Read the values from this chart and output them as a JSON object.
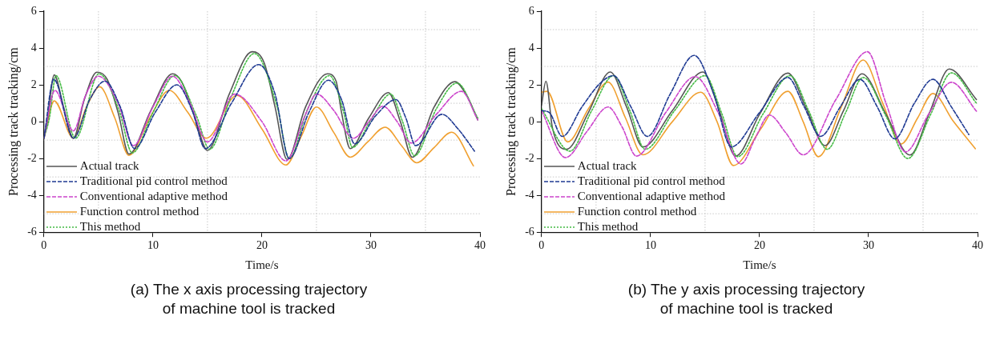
{
  "chart_data": [
    {
      "type": "line",
      "title": "(a) The x axis processing trajectory\nof machine tool is tracked",
      "xlabel": "Time/s",
      "ylabel": "Processing track tracking/cm",
      "xlim": [
        0,
        40
      ],
      "xticks": [
        0,
        10,
        20,
        30,
        40
      ],
      "ylim": [
        -6,
        6
      ],
      "yticks": [
        -6,
        -4,
        -2,
        0,
        2,
        4,
        6
      ],
      "grid": true,
      "legend": "bottom left",
      "marker": "none",
      "series": [
        {
          "name": "Actual track",
          "color": "#555555",
          "line_style": "solid",
          "x": [
            0,
            0.3,
            0.94,
            1.8,
            2.7,
            3.7,
            4.85,
            5.8,
            6.8,
            7.8,
            9.8,
            11.8,
            12.6,
            13.8,
            15,
            17,
            19.1,
            20.2,
            21.2,
            22.3,
            24,
            26,
            26.8,
            27.3,
            28.1,
            29.8,
            31.6,
            32.7,
            33.8,
            35.8,
            37.7,
            38.8,
            39.8
          ],
          "values": [
            -0.9,
            0,
            2.54,
            0.8,
            -0.9,
            1.2,
            2.69,
            2.3,
            0.5,
            -1.76,
            0.6,
            2.6,
            2.2,
            0.3,
            -1.56,
            1.5,
            3.8,
            3.2,
            0.8,
            -2.05,
            0.8,
            2.6,
            2.2,
            0.5,
            -1.46,
            0.2,
            1.58,
            0,
            -1.93,
            0.8,
            2.17,
            1.4,
            0.1
          ]
        },
        {
          "name": "Traditional pid control method",
          "color": "#1f3a93",
          "line_style": "dashed",
          "x": [
            0,
            0.9,
            2.7,
            4.2,
            5.6,
            7,
            8.3,
            10.2,
            12.2,
            13.6,
            14.8,
            17.2,
            19.7,
            21.2,
            22.5,
            24.3,
            26.1,
            27.3,
            28.5,
            30.4,
            32.3,
            33.2,
            34.1,
            36.5,
            38,
            39.5
          ],
          "values": [
            -0.9,
            2.3,
            -0.9,
            1.2,
            2.2,
            0.8,
            -1.46,
            0.5,
            2,
            0.6,
            -1.46,
            1,
            3.1,
            1.5,
            -2,
            0.5,
            2.25,
            1.2,
            -1.2,
            0.3,
            1.2,
            0.2,
            -1.3,
            0.4,
            -0.4,
            -1.6
          ]
        },
        {
          "name": "Conventional adaptive method",
          "color": "#cc44cc",
          "line_style": "dashed",
          "x": [
            0,
            1,
            2.7,
            3.8,
            5,
            6.8,
            8.2,
            10,
            11.8,
            13.4,
            15,
            17.5,
            20,
            22.2,
            24,
            25,
            26.6,
            28.4,
            29.8,
            31.1,
            32.4,
            33.7,
            36,
            38.3,
            39.8
          ],
          "values": [
            -0.9,
            1.7,
            -0.5,
            1.4,
            2.47,
            1,
            -1.3,
            0.8,
            2.47,
            1,
            -1.1,
            1.5,
            0,
            -2.13,
            0.4,
            1.5,
            0.6,
            -0.9,
            0,
            0.84,
            0,
            -1.16,
            0.4,
            1.65,
            0.1
          ]
        },
        {
          "name": "Function control method",
          "color": "#f0a030",
          "line_style": "solid",
          "x": [
            0,
            0.94,
            2.7,
            3.9,
            5.1,
            6.5,
            7.8,
            9.7,
            11.5,
            13.2,
            14.9,
            17.7,
            20,
            22.2,
            23.6,
            25,
            26.6,
            28.1,
            29.7,
            31.3,
            32.8,
            34.2,
            35.8,
            37.4,
            39.4
          ],
          "values": [
            -0.9,
            1.13,
            -0.9,
            0.8,
            1.9,
            0.2,
            -1.83,
            0.2,
            1.7,
            0.5,
            -0.9,
            1.43,
            -0.4,
            -2.35,
            -0.8,
            0.8,
            -0.6,
            -1.93,
            -1.1,
            -0.3,
            -1.3,
            -2.23,
            -1.4,
            -0.57,
            -2.4
          ]
        },
        {
          "name": "This method",
          "color": "#44bb44",
          "line_style": "dotted",
          "x": [
            0,
            0.5,
            1.1,
            2.9,
            5.05,
            6.9,
            8.1,
            10,
            12,
            14,
            15.2,
            17.2,
            19.3,
            21.4,
            22.5,
            24.2,
            26.2,
            27.5,
            28.3,
            30,
            31.8,
            32.9,
            34,
            36,
            37.9,
            39.8
          ],
          "values": [
            -0.9,
            0.2,
            2.5,
            -0.9,
            2.6,
            0.6,
            -1.7,
            0.5,
            2.5,
            0.3,
            -1.5,
            1.4,
            3.7,
            0.8,
            -2,
            0.7,
            2.5,
            0.5,
            -1.4,
            0.1,
            1.5,
            0,
            -1.85,
            0.7,
            2.1,
            0.2
          ]
        }
      ]
    },
    {
      "type": "line",
      "title": "(b) The y axis processing trajectory\nof machine tool is tracked",
      "xlabel": "Time/s",
      "ylabel": "Processing track tracking/cm",
      "xlim": [
        0,
        40
      ],
      "xticks": [
        0,
        10,
        20,
        30,
        40
      ],
      "ylim": [
        -6,
        6
      ],
      "yticks": [
        -6,
        -4,
        -2,
        0,
        2,
        4,
        6
      ],
      "grid": true,
      "legend": "bottom left",
      "marker": "none",
      "series": [
        {
          "name": "Actual track",
          "color": "#555555",
          "line_style": "solid",
          "x": [
            0,
            0.4,
            1,
            2.3,
            4.3,
            6.3,
            7.8,
            9.3,
            12,
            14.8,
            16.3,
            17.8,
            20,
            22.6,
            24.3,
            26,
            27.7,
            29.4,
            31.6,
            33.8,
            35.6,
            37.4,
            39.9
          ],
          "values": [
            0.9,
            2.2,
            -0.35,
            -1.5,
            0.5,
            2.7,
            0.8,
            -1.37,
            0.6,
            2.7,
            0.6,
            -1.87,
            0.4,
            2.64,
            0.7,
            -1.3,
            0.6,
            2.6,
            0.4,
            -1.81,
            0.5,
            2.86,
            1.2
          ]
        },
        {
          "name": "Traditional pid control method",
          "color": "#1f3a93",
          "line_style": "dashed",
          "x": [
            0,
            0.7,
            1.9,
            3.7,
            5.4,
            6.6,
            8.2,
            9.7,
            11.8,
            14,
            15.8,
            17.4,
            20,
            22.6,
            24.1,
            25.6,
            27.4,
            29.2,
            30.8,
            32.4,
            34.2,
            35.9,
            37.6,
            39.2
          ],
          "values": [
            0.6,
            0.5,
            -0.8,
            0.8,
            2.1,
            2.5,
            0.8,
            -0.8,
            1.5,
            3.6,
            1.5,
            -1.37,
            0.5,
            2.4,
            0.8,
            -0.8,
            0.8,
            2.3,
            0.8,
            -0.93,
            1,
            2.3,
            0.8,
            -0.7
          ]
        },
        {
          "name": "Conventional adaptive method",
          "color": "#cc44cc",
          "line_style": "dashed",
          "x": [
            0,
            2.2,
            4.2,
            6.1,
            7.4,
            8.7,
            11.4,
            14.1,
            16.2,
            18.3,
            19.6,
            20.9,
            22.4,
            24,
            27,
            29.9,
            31.6,
            33.4,
            35.5,
            37.6,
            39.9
          ],
          "values": [
            0.6,
            -1.95,
            -0.5,
            0.8,
            -0.3,
            -1.87,
            0.5,
            2.45,
            0.5,
            -2.3,
            -0.9,
            0.36,
            -0.6,
            -1.8,
            1.2,
            3.8,
            1,
            -1.64,
            0.4,
            2.14,
            0.57
          ]
        },
        {
          "name": "Function control method",
          "color": "#f0a030",
          "line_style": "solid",
          "x": [
            0,
            0.5,
            2.4,
            4.3,
            6.1,
            7.7,
            9.3,
            12,
            14.6,
            16.1,
            17.6,
            20.1,
            22.6,
            24,
            25.4,
            27.5,
            29.5,
            31.3,
            33,
            34.5,
            35.9,
            37.8,
            39.8
          ],
          "values": [
            1.6,
            1.65,
            -1.1,
            0.7,
            2.15,
            0.2,
            -1.8,
            0,
            1.6,
            0,
            -2.38,
            -0.4,
            1.65,
            0,
            -1.9,
            0.8,
            3.35,
            1,
            -1.21,
            0.2,
            1.53,
            0,
            -1.47
          ]
        },
        {
          "name": "This method",
          "color": "#44bb44",
          "line_style": "dotted",
          "x": [
            0,
            2.6,
            4.6,
            6.6,
            8.1,
            9.5,
            12.2,
            15,
            16.5,
            18,
            20.3,
            22.8,
            24.5,
            26.2,
            27.9,
            29.5,
            31.6,
            33.6,
            35.7,
            37.6,
            39.9
          ],
          "values": [
            0.7,
            -1.6,
            0.6,
            2.5,
            0.6,
            -1.5,
            0.6,
            2.5,
            0.5,
            -1.9,
            0.4,
            2.5,
            0.6,
            -1.5,
            0.5,
            2.4,
            0.3,
            -2,
            0.4,
            2.65,
            1
          ]
        }
      ]
    }
  ]
}
